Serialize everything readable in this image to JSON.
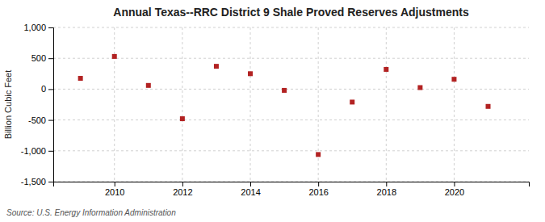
{
  "chart_data": {
    "type": "scatter",
    "title": "Annual Texas--RRC District 9 Shale Proved Reserves Adjustments",
    "ylabel": "Billion Cubic Feet",
    "annotation": "Source: U.S. Energy Information Administration",
    "x": [
      2009,
      2010,
      2011,
      2012,
      2013,
      2014,
      2015,
      2016,
      2017,
      2018,
      2019,
      2020,
      2021
    ],
    "values": [
      175,
      530,
      60,
      -480,
      370,
      250,
      -20,
      -1060,
      -210,
      320,
      25,
      160,
      -280
    ],
    "color": "#b22222",
    "marker": "square",
    "xlim": [
      2008.2,
      2022.2
    ],
    "xticks": [
      2010,
      2012,
      2014,
      2016,
      2018,
      2020
    ],
    "ylim": [
      -1500,
      1000
    ],
    "yticks": [
      {
        "value": -1500,
        "label": "-1,500"
      },
      {
        "value": -1000,
        "label": "-1,000"
      },
      -500,
      0,
      500,
      {
        "value": 1000,
        "label": "1,000"
      }
    ],
    "grid": true
  }
}
